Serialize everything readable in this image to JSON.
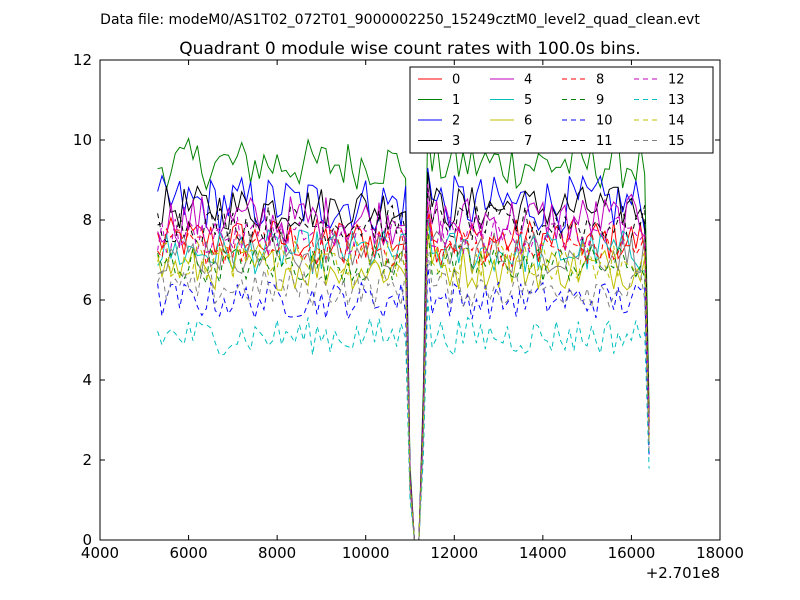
{
  "suptitle": "Data file: modeM0/AS1T02_072T01_9000002250_15249cztM0_level2_quad_clean.evt",
  "chart_data": {
    "type": "line",
    "title": "Quadrant 0 module wise count rates with 100.0s bins.",
    "xlabel": "",
    "ylabel": "",
    "xlim": [
      4000,
      18000
    ],
    "ylim": [
      0,
      12
    ],
    "x_offset_label": "+2.701e8",
    "xticks": [
      "4000",
      "6000",
      "8000",
      "10000",
      "12000",
      "14000",
      "16000",
      "18000"
    ],
    "yticks": [
      "0",
      "2",
      "4",
      "6",
      "8",
      "10",
      "12"
    ],
    "x_range": [
      5300,
      16400
    ],
    "x_step": 100,
    "gap_start": 11000,
    "gap_end": 11300,
    "legend_position": "top-right",
    "legend_columns": 4,
    "series": [
      {
        "name": "0",
        "color": "#ff0000",
        "dashed": false,
        "level": 7.5,
        "amp": 0.35
      },
      {
        "name": "1",
        "color": "#008000",
        "dashed": false,
        "level": 9.4,
        "amp": 0.4
      },
      {
        "name": "2",
        "color": "#0000ff",
        "dashed": false,
        "level": 8.4,
        "amp": 0.45
      },
      {
        "name": "3",
        "color": "#000000",
        "dashed": false,
        "level": 8.3,
        "amp": 0.35
      },
      {
        "name": "4",
        "color": "#bf00bf",
        "dashed": false,
        "level": 8.0,
        "amp": 0.4
      },
      {
        "name": "5",
        "color": "#00bfbf",
        "dashed": false,
        "level": 7.2,
        "amp": 0.35
      },
      {
        "name": "6",
        "color": "#bfbf00",
        "dashed": false,
        "level": 6.8,
        "amp": 0.35
      },
      {
        "name": "7",
        "color": "#808080",
        "dashed": false,
        "level": 7.2,
        "amp": 0.35
      },
      {
        "name": "8",
        "color": "#ff0000",
        "dashed": true,
        "level": 7.3,
        "amp": 0.3
      },
      {
        "name": "9",
        "color": "#008000",
        "dashed": true,
        "level": 6.9,
        "amp": 0.3
      },
      {
        "name": "10",
        "color": "#0000ff",
        "dashed": true,
        "level": 6.0,
        "amp": 0.3
      },
      {
        "name": "11",
        "color": "#000000",
        "dashed": true,
        "level": 7.9,
        "amp": 0.3
      },
      {
        "name": "12",
        "color": "#bf00bf",
        "dashed": true,
        "level": 7.6,
        "amp": 0.3
      },
      {
        "name": "13",
        "color": "#00bfbf",
        "dashed": true,
        "level": 5.1,
        "amp": 0.3
      },
      {
        "name": "14",
        "color": "#bfbf00",
        "dashed": true,
        "level": 7.0,
        "amp": 0.3
      },
      {
        "name": "15",
        "color": "#808080",
        "dashed": true,
        "level": 6.3,
        "amp": 0.3
      }
    ]
  }
}
